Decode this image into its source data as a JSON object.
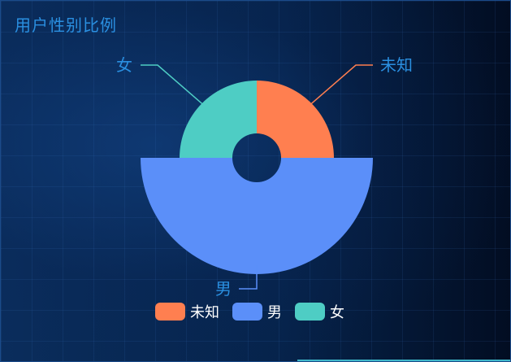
{
  "title": "用户性别比例",
  "chart_data": {
    "type": "pie",
    "subtype": "rose",
    "title": "用户性别比例",
    "legend_position": "bottom",
    "slices": [
      {
        "name": "未知",
        "value": 1,
        "color": "#ff7f50"
      },
      {
        "name": "男",
        "value": 2,
        "color": "#5b8ff9"
      },
      {
        "name": "女",
        "value": 1,
        "color": "#4ecdc4"
      }
    ]
  }
}
